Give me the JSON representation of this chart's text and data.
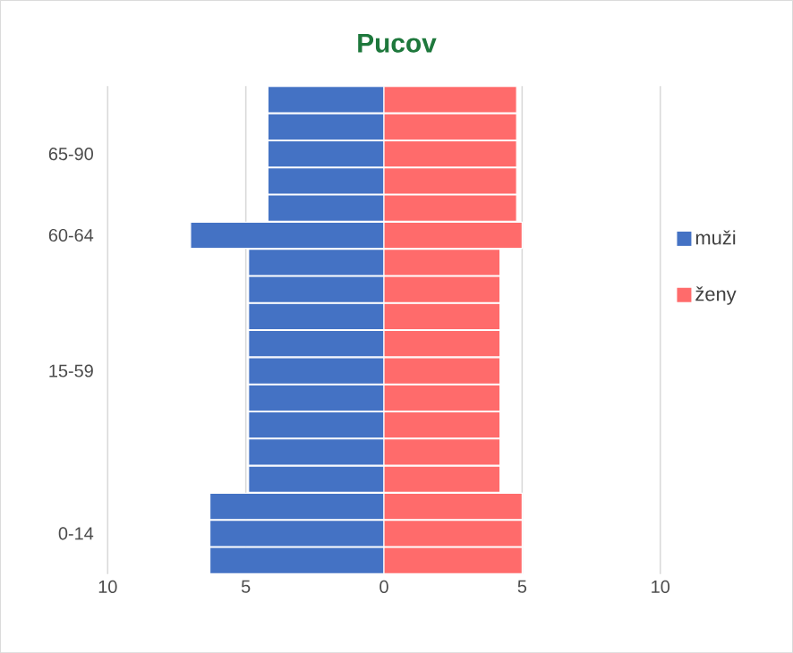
{
  "chart_data": {
    "type": "bar",
    "orientation": "horizontal",
    "stacked": true,
    "title": "Pucov",
    "categories": [
      null,
      null,
      "65-90",
      null,
      null,
      "60-64",
      null,
      null,
      null,
      null,
      "15-59",
      null,
      null,
      null,
      null,
      null,
      "0-14",
      null
    ],
    "series": [
      {
        "name": "muži",
        "color": "#4472c4",
        "values": [
          -4.2,
          -4.2,
          -4.2,
          -4.2,
          -4.2,
          -7.0,
          -4.9,
          -4.9,
          -4.9,
          -4.9,
          -4.9,
          -4.9,
          -4.9,
          -4.9,
          -4.9,
          -6.3,
          -6.3,
          -6.3
        ]
      },
      {
        "name": "ženy",
        "color": "#ff6b6b",
        "values": [
          4.8,
          4.8,
          4.8,
          4.8,
          4.8,
          5.0,
          4.2,
          4.2,
          4.2,
          4.2,
          4.2,
          4.2,
          4.2,
          4.2,
          4.2,
          5.0,
          5.0,
          5.0
        ]
      }
    ],
    "xlim": [
      -10,
      10
    ],
    "xticks": [
      {
        "value": -10,
        "label": "10"
      },
      {
        "value": -5,
        "label": "5"
      },
      0,
      5,
      10
    ],
    "grid": "x",
    "legend": "right"
  }
}
